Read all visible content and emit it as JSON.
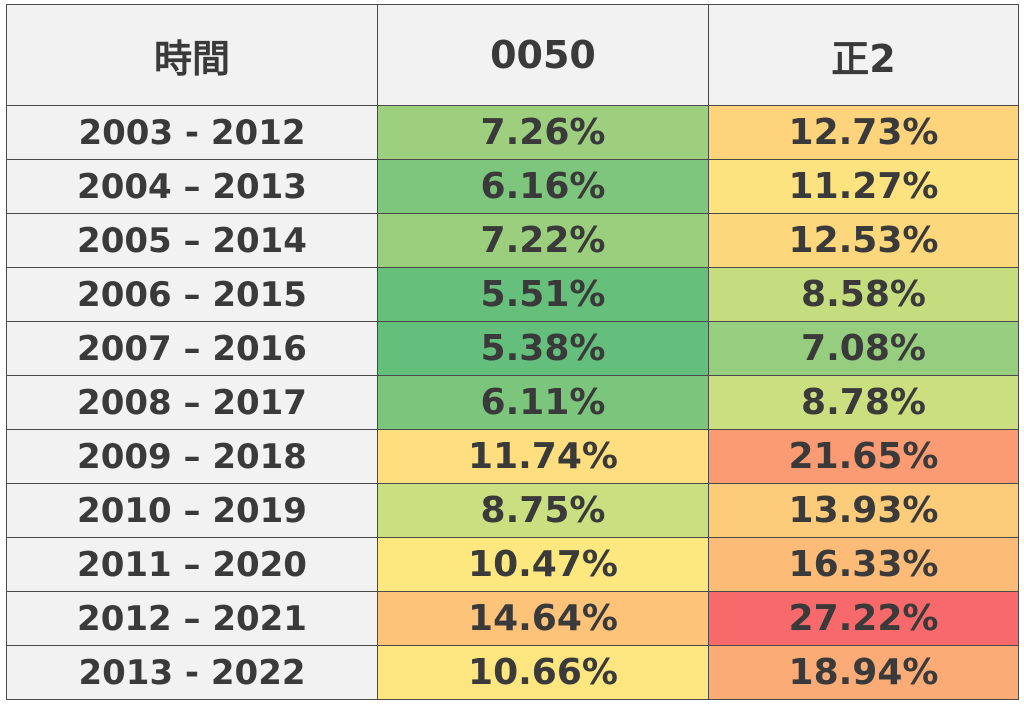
{
  "headers": [
    "時間",
    "0050",
    "正2"
  ],
  "rows": [
    {
      "period": "2003 - 2012",
      "v0050": "7.26%",
      "v2": "12.73%",
      "c0050": "#9dcf7f",
      "c2": "#fdd47b"
    },
    {
      "period": "2004 – 2013",
      "v0050": "6.16%",
      "v2": "11.27%",
      "c0050": "#7ec67e",
      "c2": "#fde37f"
    },
    {
      "period": "2005 – 2014",
      "v0050": "7.22%",
      "v2": "12.53%",
      "c0050": "#9bcf7e",
      "c2": "#fdd77c"
    },
    {
      "period": "2006 – 2015",
      "v0050": "5.51%",
      "v2": "8.58%",
      "c0050": "#66c07b",
      "c2": "#c5dd7f"
    },
    {
      "period": "2007 – 2016",
      "v0050": "5.38%",
      "v2": "7.08%",
      "c0050": "#63bf7b",
      "c2": "#96cd7e"
    },
    {
      "period": "2008 – 2017",
      "v0050": "6.11%",
      "v2": "8.78%",
      "c0050": "#7cc57d",
      "c2": "#cbdf80"
    },
    {
      "period": "2009 – 2018",
      "v0050": "11.74%",
      "v2": "21.65%",
      "c0050": "#fede7e",
      "c2": "#fb9b73"
    },
    {
      "period": "2010 – 2019",
      "v0050": "8.75%",
      "v2": "13.93%",
      "c0050": "#c9df80",
      "c2": "#fdcc7b"
    },
    {
      "period": "2011 – 2020",
      "v0050": "10.47%",
      "v2": "16.33%",
      "c0050": "#fde880",
      "c2": "#fcbc77"
    },
    {
      "period": "2012 – 2021",
      "v0050": "14.64%",
      "v2": "27.22%",
      "c0050": "#fdc379",
      "c2": "#f8696b"
    },
    {
      "period": "2013 - 2022",
      "v0050": "10.66%",
      "v2": "18.94%",
      "c0050": "#fde680",
      "c2": "#fbab75"
    }
  ]
}
